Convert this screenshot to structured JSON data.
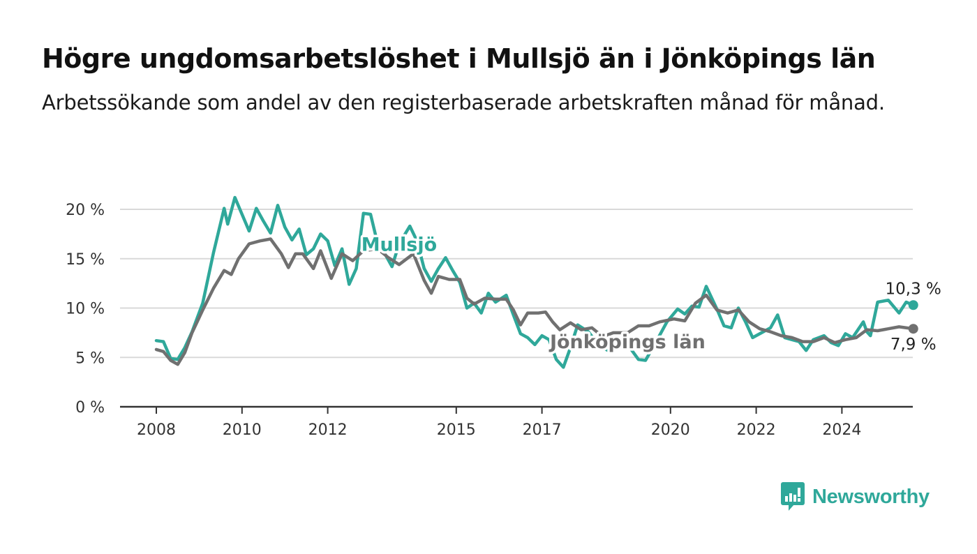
{
  "header": {
    "title": "Högre ungdomsarbetslöshet i Mullsjö än i Jönköpings län",
    "subtitle": "Arbetssökande som andel av den registerbaserade arbetskraften månad för månad."
  },
  "brand": {
    "name": "Newsworthy",
    "icon": "newsworthy-logo-icon",
    "color": "#2fa89a"
  },
  "chart_data": {
    "type": "line",
    "title": "Högre ungdomsarbetslöshet i Mullsjö än i Jönköpings län",
    "subtitle": "Arbetssökande som andel av den registerbaserade arbetskraften månad för månad.",
    "xlabel": "",
    "ylabel": "",
    "ylim": [
      0,
      20
    ],
    "y_ticks": [
      0,
      5,
      10,
      15,
      20
    ],
    "y_tick_labels": [
      "0 %",
      "5 %",
      "10 %",
      "15 %",
      "20 %"
    ],
    "x_range": [
      "2008-01",
      "2025-09"
    ],
    "x_tick_labels": [
      "2008",
      "2010",
      "2012",
      "2015",
      "2017",
      "2020",
      "2022",
      "2024"
    ],
    "grid": true,
    "legend": "inline labels",
    "series": [
      {
        "name": "Mullsjö",
        "color": "#2fa89a",
        "end_label": "10,3 %",
        "points": [
          [
            "2008-01",
            6.7
          ],
          [
            "2008-03",
            6.6
          ],
          [
            "2008-05",
            4.9
          ],
          [
            "2008-07",
            4.8
          ],
          [
            "2008-09",
            6.0
          ],
          [
            "2008-11",
            7.6
          ],
          [
            "2009-02",
            10.5
          ],
          [
            "2009-05",
            15.6
          ],
          [
            "2009-08",
            20.1
          ],
          [
            "2009-09",
            18.5
          ],
          [
            "2009-11",
            21.2
          ],
          [
            "2010-01",
            19.5
          ],
          [
            "2010-03",
            17.8
          ],
          [
            "2010-05",
            20.1
          ],
          [
            "2010-07",
            18.8
          ],
          [
            "2010-09",
            17.6
          ],
          [
            "2010-11",
            20.4
          ],
          [
            "2011-01",
            18.2
          ],
          [
            "2011-03",
            16.9
          ],
          [
            "2011-05",
            18.0
          ],
          [
            "2011-07",
            15.4
          ],
          [
            "2011-09",
            16.0
          ],
          [
            "2011-11",
            17.5
          ],
          [
            "2012-01",
            16.8
          ],
          [
            "2012-03",
            14.3
          ],
          [
            "2012-05",
            16.0
          ],
          [
            "2012-07",
            12.4
          ],
          [
            "2012-09",
            14.0
          ],
          [
            "2012-11",
            19.6
          ],
          [
            "2013-01",
            19.5
          ],
          [
            "2013-03",
            16.5
          ],
          [
            "2013-05",
            15.5
          ],
          [
            "2013-07",
            14.2
          ],
          [
            "2013-09",
            16.5
          ],
          [
            "2013-12",
            18.3
          ],
          [
            "2014-02",
            16.8
          ],
          [
            "2014-04",
            14.0
          ],
          [
            "2014-06",
            12.7
          ],
          [
            "2014-08",
            14.0
          ],
          [
            "2014-10",
            15.1
          ],
          [
            "2014-12",
            13.8
          ],
          [
            "2015-02",
            12.6
          ],
          [
            "2015-04",
            10.0
          ],
          [
            "2015-06",
            10.5
          ],
          [
            "2015-08",
            9.5
          ],
          [
            "2015-10",
            11.5
          ],
          [
            "2015-12",
            10.6
          ],
          [
            "2016-03",
            11.3
          ],
          [
            "2016-05",
            9.3
          ],
          [
            "2016-07",
            7.4
          ],
          [
            "2016-09",
            7.0
          ],
          [
            "2016-11",
            6.3
          ],
          [
            "2017-01",
            7.2
          ],
          [
            "2017-03",
            6.8
          ],
          [
            "2017-05",
            4.8
          ],
          [
            "2017-07",
            4.0
          ],
          [
            "2017-09",
            6.0
          ],
          [
            "2017-11",
            8.3
          ],
          [
            "2018-02",
            7.6
          ],
          [
            "2018-05",
            6.2
          ],
          [
            "2018-08",
            5.6
          ],
          [
            "2018-11",
            6.4
          ],
          [
            "2019-02",
            5.8
          ],
          [
            "2019-04",
            4.8
          ],
          [
            "2019-06",
            4.7
          ],
          [
            "2019-09",
            6.6
          ],
          [
            "2019-12",
            8.6
          ],
          [
            "2020-03",
            9.9
          ],
          [
            "2020-05",
            9.4
          ],
          [
            "2020-07",
            10.2
          ],
          [
            "2020-09",
            10.1
          ],
          [
            "2020-11",
            12.2
          ],
          [
            "2021-02",
            9.9
          ],
          [
            "2021-04",
            8.2
          ],
          [
            "2021-06",
            8.0
          ],
          [
            "2021-08",
            10.0
          ],
          [
            "2021-10",
            8.6
          ],
          [
            "2021-12",
            7.0
          ],
          [
            "2022-03",
            7.6
          ],
          [
            "2022-05",
            8.0
          ],
          [
            "2022-07",
            9.3
          ],
          [
            "2022-09",
            7.0
          ],
          [
            "2022-11",
            6.8
          ],
          [
            "2023-01",
            6.6
          ],
          [
            "2023-03",
            5.7
          ],
          [
            "2023-05",
            6.8
          ],
          [
            "2023-08",
            7.2
          ],
          [
            "2023-10",
            6.5
          ],
          [
            "2023-12",
            6.2
          ],
          [
            "2024-02",
            7.4
          ],
          [
            "2024-04",
            7.0
          ],
          [
            "2024-07",
            8.6
          ],
          [
            "2024-08",
            7.6
          ],
          [
            "2024-09",
            7.2
          ],
          [
            "2024-11",
            10.6
          ],
          [
            "2025-02",
            10.8
          ],
          [
            "2025-05",
            9.5
          ],
          [
            "2025-07",
            10.6
          ],
          [
            "2025-09",
            10.3
          ]
        ]
      },
      {
        "name": "Jönköpings län",
        "color": "#707070",
        "end_label": "7,9 %",
        "points": [
          [
            "2008-01",
            5.8
          ],
          [
            "2008-03",
            5.6
          ],
          [
            "2008-05",
            4.7
          ],
          [
            "2008-07",
            4.3
          ],
          [
            "2008-09",
            5.5
          ],
          [
            "2008-11",
            7.5
          ],
          [
            "2009-02",
            9.8
          ],
          [
            "2009-05",
            12.0
          ],
          [
            "2009-08",
            13.8
          ],
          [
            "2009-10",
            13.4
          ],
          [
            "2009-12",
            15.0
          ],
          [
            "2010-03",
            16.5
          ],
          [
            "2010-06",
            16.8
          ],
          [
            "2010-09",
            17.0
          ],
          [
            "2010-12",
            15.5
          ],
          [
            "2011-02",
            14.1
          ],
          [
            "2011-04",
            15.5
          ],
          [
            "2011-06",
            15.5
          ],
          [
            "2011-09",
            14.0
          ],
          [
            "2011-11",
            15.8
          ],
          [
            "2012-02",
            13.0
          ],
          [
            "2012-05",
            15.5
          ],
          [
            "2012-08",
            14.8
          ],
          [
            "2012-11",
            15.8
          ],
          [
            "2013-03",
            16.0
          ],
          [
            "2013-06",
            15.1
          ],
          [
            "2013-09",
            14.4
          ],
          [
            "2014-01",
            15.5
          ],
          [
            "2014-04",
            12.8
          ],
          [
            "2014-06",
            11.5
          ],
          [
            "2014-08",
            13.2
          ],
          [
            "2014-11",
            12.9
          ],
          [
            "2015-02",
            12.9
          ],
          [
            "2015-04",
            11.0
          ],
          [
            "2015-06",
            10.4
          ],
          [
            "2015-09",
            11.0
          ],
          [
            "2015-12",
            10.9
          ],
          [
            "2016-03",
            10.9
          ],
          [
            "2016-05",
            9.8
          ],
          [
            "2016-07",
            8.3
          ],
          [
            "2016-09",
            9.5
          ],
          [
            "2016-12",
            9.5
          ],
          [
            "2017-02",
            9.6
          ],
          [
            "2017-04",
            8.6
          ],
          [
            "2017-06",
            7.8
          ],
          [
            "2017-09",
            8.5
          ],
          [
            "2017-12",
            7.8
          ],
          [
            "2018-03",
            8.0
          ],
          [
            "2018-06",
            7.1
          ],
          [
            "2018-09",
            7.5
          ],
          [
            "2019-01",
            7.5
          ],
          [
            "2019-04",
            8.2
          ],
          [
            "2019-07",
            8.2
          ],
          [
            "2019-10",
            8.6
          ],
          [
            "2020-02",
            8.9
          ],
          [
            "2020-05",
            8.7
          ],
          [
            "2020-08",
            10.5
          ],
          [
            "2020-11",
            11.3
          ],
          [
            "2021-02",
            9.8
          ],
          [
            "2021-05",
            9.5
          ],
          [
            "2021-08",
            9.8
          ],
          [
            "2021-11",
            8.6
          ],
          [
            "2022-02",
            7.9
          ],
          [
            "2022-05",
            7.6
          ],
          [
            "2022-08",
            7.2
          ],
          [
            "2022-11",
            7.0
          ],
          [
            "2023-02",
            6.6
          ],
          [
            "2023-05",
            6.6
          ],
          [
            "2023-08",
            7.0
          ],
          [
            "2023-11",
            6.5
          ],
          [
            "2024-02",
            6.8
          ],
          [
            "2024-05",
            7.0
          ],
          [
            "2024-08",
            7.8
          ],
          [
            "2024-11",
            7.7
          ],
          [
            "2025-02",
            7.9
          ],
          [
            "2025-05",
            8.1
          ],
          [
            "2025-09",
            7.9
          ]
        ]
      }
    ]
  }
}
